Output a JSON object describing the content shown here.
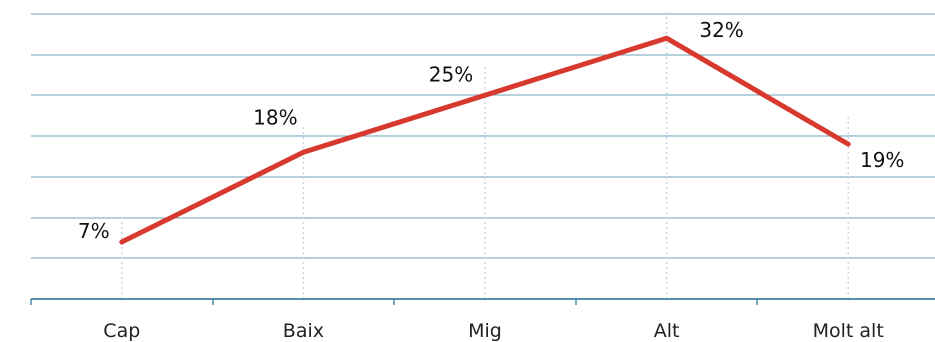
{
  "chart_data": {
    "type": "line",
    "title": "",
    "xlabel": "",
    "ylabel": "",
    "categories": [
      "Cap",
      "Baix",
      "Mig",
      "Alt",
      "Molt alt"
    ],
    "series": [
      {
        "name": "",
        "values": [
          7,
          18,
          25,
          32,
          19
        ],
        "labels": [
          "7%",
          "18%",
          "25%",
          "32%",
          "19%"
        ],
        "color": "#d7392e"
      }
    ],
    "ylim": [
      0,
      35
    ],
    "grid": true,
    "legend": "none",
    "colors": {
      "grid": "#1f6f95",
      "axis": "#1f6f95",
      "dropline": "#c9d6df",
      "text": "#222222"
    }
  }
}
